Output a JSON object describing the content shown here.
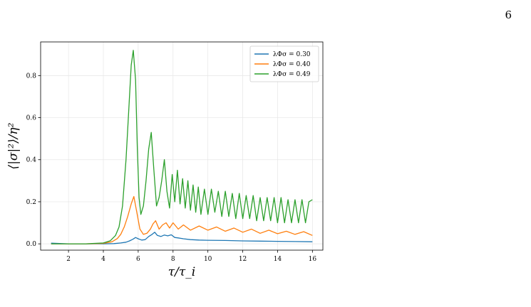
{
  "page_number": "6",
  "chart_data": {
    "type": "line",
    "title": "",
    "xlabel": "τ/τ_i",
    "ylabel": "⟨|σ|²⟩/η²",
    "xlim": [
      0.4,
      16.6
    ],
    "ylim": [
      -0.03,
      0.96
    ],
    "xticks": [
      2,
      4,
      6,
      8,
      10,
      12,
      14,
      16
    ],
    "yticks": [
      0.0,
      0.2,
      0.4,
      0.6,
      0.8
    ],
    "grid": true,
    "legend_position": "top-right",
    "series": [
      {
        "name": "λΦσ = 0.30",
        "color": "#1f77b4",
        "x": [
          1.0,
          2.0,
          3.0,
          4.0,
          4.6,
          5.0,
          5.3,
          5.5,
          5.7,
          5.85,
          6.0,
          6.2,
          6.4,
          6.6,
          6.8,
          6.95,
          7.1,
          7.3,
          7.5,
          7.7,
          7.9,
          8.1,
          8.3,
          8.6,
          9.0,
          9.5,
          10.0,
          11.0,
          12.0,
          13.0,
          14.0,
          15.0,
          16.0
        ],
        "y": [
          0.003,
          0.0,
          0.0,
          0.0,
          0.001,
          0.004,
          0.008,
          0.014,
          0.022,
          0.03,
          0.024,
          0.018,
          0.02,
          0.035,
          0.045,
          0.055,
          0.04,
          0.035,
          0.042,
          0.038,
          0.043,
          0.03,
          0.028,
          0.024,
          0.02,
          0.018,
          0.017,
          0.016,
          0.014,
          0.013,
          0.012,
          0.011,
          0.01
        ]
      },
      {
        "name": "λΦσ = 0.40",
        "color": "#ff7f0e",
        "x": [
          1.0,
          2.0,
          3.0,
          4.0,
          4.5,
          4.8,
          5.0,
          5.2,
          5.4,
          5.6,
          5.75,
          5.9,
          6.1,
          6.3,
          6.5,
          6.7,
          6.85,
          7.0,
          7.2,
          7.4,
          7.6,
          7.8,
          8.0,
          8.3,
          8.6,
          9.0,
          9.5,
          10.0,
          10.5,
          11.0,
          11.5,
          12.0,
          12.5,
          13.0,
          13.5,
          14.0,
          14.5,
          15.0,
          15.5,
          16.0
        ],
        "y": [
          0.0,
          0.0,
          0.0,
          0.002,
          0.01,
          0.025,
          0.045,
          0.08,
          0.13,
          0.19,
          0.225,
          0.16,
          0.07,
          0.045,
          0.05,
          0.07,
          0.095,
          0.11,
          0.07,
          0.09,
          0.1,
          0.075,
          0.1,
          0.07,
          0.09,
          0.065,
          0.085,
          0.065,
          0.08,
          0.06,
          0.075,
          0.055,
          0.07,
          0.05,
          0.065,
          0.048,
          0.06,
          0.045,
          0.058,
          0.04
        ]
      },
      {
        "name": "λΦσ = 0.49",
        "color": "#2ca02c",
        "x": [
          1.0,
          2.0,
          3.0,
          4.0,
          4.4,
          4.7,
          4.9,
          5.1,
          5.3,
          5.45,
          5.6,
          5.72,
          5.85,
          5.95,
          6.05,
          6.15,
          6.3,
          6.45,
          6.6,
          6.75,
          6.9,
          7.05,
          7.2,
          7.35,
          7.5,
          7.65,
          7.8,
          7.95,
          8.1,
          8.25,
          8.4,
          8.55,
          8.7,
          8.85,
          9.0,
          9.15,
          9.3,
          9.45,
          9.6,
          9.8,
          10.0,
          10.2,
          10.4,
          10.6,
          10.8,
          11.0,
          11.2,
          11.4,
          11.6,
          11.8,
          12.0,
          12.2,
          12.4,
          12.6,
          12.8,
          13.0,
          13.2,
          13.4,
          13.6,
          13.8,
          14.0,
          14.2,
          14.4,
          14.6,
          14.8,
          15.0,
          15.2,
          15.4,
          15.6,
          15.8,
          16.0
        ],
        "y": [
          0.0,
          0.0,
          0.0,
          0.004,
          0.015,
          0.04,
          0.08,
          0.18,
          0.4,
          0.62,
          0.85,
          0.92,
          0.78,
          0.45,
          0.22,
          0.14,
          0.18,
          0.3,
          0.45,
          0.53,
          0.35,
          0.18,
          0.22,
          0.3,
          0.4,
          0.25,
          0.17,
          0.33,
          0.2,
          0.35,
          0.19,
          0.31,
          0.17,
          0.3,
          0.16,
          0.28,
          0.15,
          0.27,
          0.14,
          0.26,
          0.14,
          0.26,
          0.15,
          0.25,
          0.13,
          0.25,
          0.13,
          0.24,
          0.12,
          0.24,
          0.12,
          0.23,
          0.12,
          0.23,
          0.11,
          0.22,
          0.11,
          0.22,
          0.11,
          0.22,
          0.1,
          0.22,
          0.1,
          0.21,
          0.1,
          0.21,
          0.1,
          0.21,
          0.1,
          0.2,
          0.21
        ]
      }
    ]
  }
}
